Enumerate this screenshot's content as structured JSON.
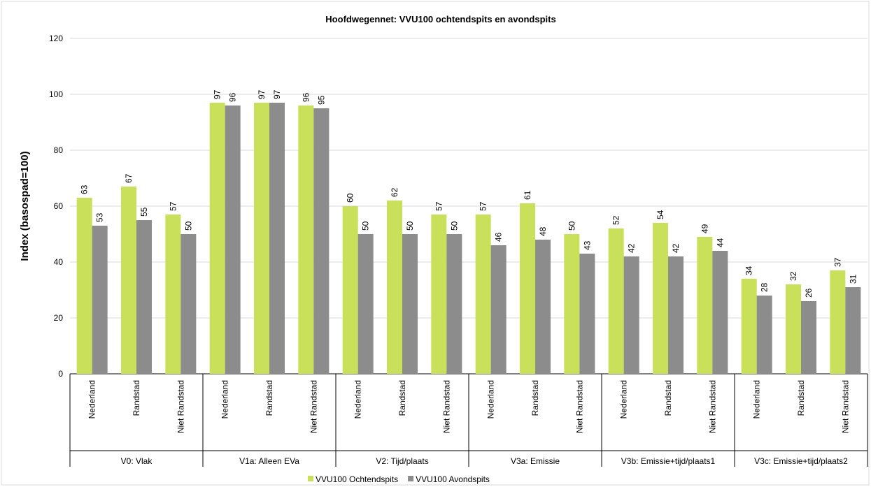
{
  "chart_data": {
    "type": "bar",
    "title": "Hoofdwegennet:  VVU100 ochtendspits  en avondspits",
    "y_label": "Index (basospad=100)",
    "groups": [
      {
        "name": "V0: Vlak",
        "categories": [
          "Nederland",
          "Randstad",
          "Niet Randstad"
        ]
      },
      {
        "name": "V1a: Alleen EVa",
        "categories": [
          "Nederland",
          "Randstad",
          "Niet Randstad"
        ]
      },
      {
        "name": "V2: Tijd/plaats",
        "categories": [
          "Nederland",
          "Randstad",
          "Niet Randstad"
        ]
      },
      {
        "name": "V3a: Emissie",
        "categories": [
          "Nederland",
          "Randstad",
          "Niet Randstad"
        ]
      },
      {
        "name": "V3b: Emissie+tijd/plaats1",
        "categories": [
          "Nederland",
          "Randstad",
          "Niet Randstad"
        ]
      },
      {
        "name": "V3c: Emissie+tijd/plaats2",
        "categories": [
          "Nederland",
          "Randstad",
          "Niet Randstad"
        ]
      }
    ],
    "series": [
      {
        "name": "VVU100 Ochtendspits",
        "color": "#c8e05a",
        "values": [
          63,
          67,
          57,
          97,
          97,
          96,
          60,
          62,
          57,
          57,
          61,
          50,
          52,
          54,
          49,
          34,
          32,
          37
        ]
      },
      {
        "name": "VVU100 Avondspits",
        "color": "#8c8c8c",
        "values": [
          53,
          55,
          50,
          96,
          97,
          95,
          50,
          50,
          50,
          46,
          48,
          43,
          42,
          42,
          44,
          28,
          26,
          31
        ]
      }
    ],
    "ylim": [
      0,
      120
    ],
    "yticks": [
      0,
      20,
      40,
      60,
      80,
      100,
      120
    ],
    "grid": true,
    "legend": "bottom"
  }
}
